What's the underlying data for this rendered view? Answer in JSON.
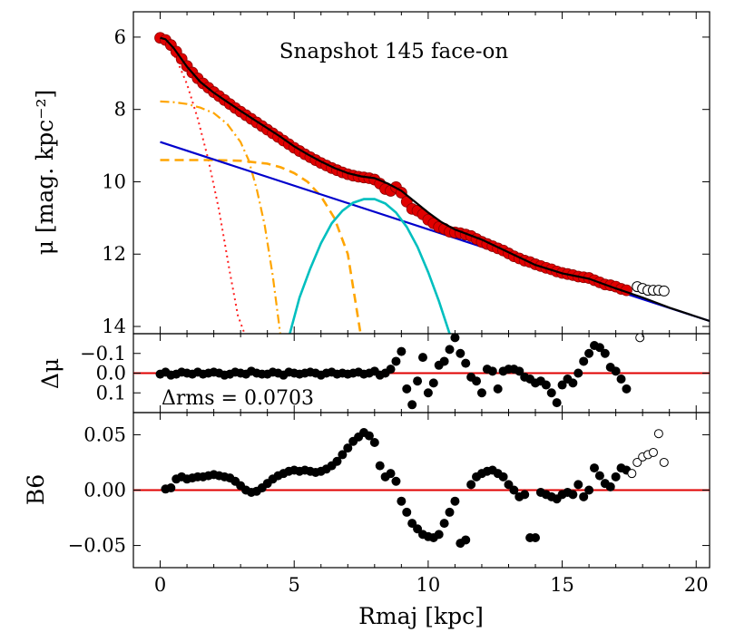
{
  "chart_data": [
    {
      "type": "scatter",
      "title": "Snapshot 145 face-on",
      "ylabel": "μ [mag. kpc⁻²]",
      "y_inverted": true,
      "xlim": [
        -1.0,
        20.5
      ],
      "ylim": [
        5.3,
        14.2
      ],
      "yticks": [
        6,
        8,
        10,
        12,
        14
      ],
      "colors": {
        "data": "#e00000",
        "total": "#000000",
        "bulge": "#ff2020",
        "bar": "#ffa500",
        "disk": "#0000cc",
        "ring": "#00bfbf"
      },
      "series": [
        {
          "name": "data points",
          "x": [
            0.0,
            0.2,
            0.4,
            0.6,
            0.8,
            1.0,
            1.2,
            1.4,
            1.6,
            1.8,
            2.0,
            2.2,
            2.4,
            2.6,
            2.8,
            3.0,
            3.2,
            3.4,
            3.6,
            3.8,
            4.0,
            4.2,
            4.4,
            4.6,
            4.8,
            5.0,
            5.2,
            5.4,
            5.6,
            5.8,
            6.0,
            6.2,
            6.4,
            6.6,
            6.8,
            7.0,
            7.2,
            7.4,
            7.6,
            7.8,
            8.0,
            8.2,
            8.4,
            8.6,
            8.8,
            9.0,
            9.2,
            9.4,
            9.6,
            9.8,
            10.0,
            10.2,
            10.4,
            10.6,
            10.8,
            11.0,
            11.2,
            11.4,
            11.6,
            11.8,
            12.0,
            12.2,
            12.4,
            12.6,
            12.8,
            13.0,
            13.2,
            13.4,
            13.6,
            13.8,
            14.0,
            14.2,
            14.4,
            14.6,
            14.8,
            15.0,
            15.2,
            15.4,
            15.6,
            15.8,
            16.0,
            16.2,
            16.4,
            16.6,
            16.8,
            17.0,
            17.2,
            17.4
          ],
          "y": [
            6.02,
            6.08,
            6.22,
            6.4,
            6.6,
            6.8,
            6.98,
            7.14,
            7.28,
            7.4,
            7.52,
            7.63,
            7.74,
            7.85,
            7.96,
            8.06,
            8.16,
            8.26,
            8.36,
            8.46,
            8.56,
            8.66,
            8.76,
            8.86,
            8.96,
            9.06,
            9.15,
            9.24,
            9.32,
            9.4,
            9.48,
            9.55,
            9.62,
            9.68,
            9.74,
            9.79,
            9.83,
            9.86,
            9.88,
            9.9,
            9.94,
            10.05,
            10.2,
            10.25,
            10.15,
            10.3,
            10.55,
            10.75,
            10.8,
            10.9,
            11.05,
            11.15,
            11.25,
            11.3,
            11.38,
            11.4,
            11.42,
            11.46,
            11.5,
            11.58,
            11.66,
            11.72,
            11.78,
            11.84,
            11.9,
            11.98,
            12.06,
            12.12,
            12.18,
            12.22,
            12.28,
            12.33,
            12.38,
            12.42,
            12.48,
            12.52,
            12.55,
            12.58,
            12.62,
            12.64,
            12.66,
            12.72,
            12.78,
            12.84,
            12.86,
            12.9,
            12.96,
            13.0
          ]
        },
        {
          "name": "excluded points",
          "x": [
            17.8,
            18.0,
            18.2,
            18.4,
            18.6,
            18.8
          ],
          "y": [
            12.9,
            12.95,
            13.0,
            13.0,
            13.0,
            13.02
          ]
        },
        {
          "name": "total model",
          "style": "solid",
          "x": [
            0,
            0.2,
            0.5,
            1,
            1.5,
            2,
            2.5,
            3,
            3.5,
            4,
            4.5,
            5,
            5.5,
            6,
            6.5,
            7,
            7.5,
            8,
            8.5,
            9,
            9.5,
            10,
            10.5,
            11,
            11.5,
            12,
            13,
            14,
            15,
            16,
            17,
            18,
            19,
            20.5
          ],
          "y": [
            6.02,
            6.06,
            6.3,
            6.82,
            7.24,
            7.54,
            7.79,
            8.04,
            8.28,
            8.52,
            8.76,
            9.02,
            9.24,
            9.44,
            9.62,
            9.76,
            9.85,
            9.9,
            10.05,
            10.25,
            10.55,
            10.85,
            11.12,
            11.32,
            11.46,
            11.6,
            11.95,
            12.3,
            12.53,
            12.68,
            12.95,
            13.2,
            13.48,
            13.85
          ]
        },
        {
          "name": "bulge",
          "style": "dotted",
          "x": [
            0,
            0.3,
            0.6,
            1.0,
            1.4,
            1.8,
            2.2,
            2.6,
            2.9,
            3.2
          ],
          "y": [
            6.1,
            6.25,
            6.6,
            7.3,
            8.25,
            9.4,
            10.8,
            12.5,
            13.7,
            14.3
          ]
        },
        {
          "name": "bar (inner)",
          "style": "dashdot",
          "x": [
            0,
            0.5,
            1.0,
            1.5,
            2.0,
            2.5,
            3.0,
            3.3,
            3.6,
            3.9,
            4.2,
            4.5
          ],
          "y": [
            7.78,
            7.8,
            7.85,
            7.95,
            8.1,
            8.4,
            8.9,
            9.4,
            10.2,
            11.2,
            12.6,
            14.3
          ]
        },
        {
          "name": "bar (outer)",
          "style": "dashed",
          "x": [
            0,
            1,
            2,
            3,
            4,
            4.5,
            5,
            5.5,
            6,
            6.5,
            7,
            7.5
          ],
          "y": [
            9.4,
            9.4,
            9.4,
            9.42,
            9.5,
            9.6,
            9.76,
            10.0,
            10.4,
            11.0,
            12.0,
            14.3
          ]
        },
        {
          "name": "disk",
          "style": "solid",
          "x": [
            0,
            20.5
          ],
          "y": [
            8.9,
            13.85
          ]
        },
        {
          "name": "ring",
          "style": "solid",
          "x": [
            4.8,
            5.2,
            5.6,
            6.0,
            6.4,
            6.8,
            7.2,
            7.6,
            8.0,
            8.4,
            8.8,
            9.2,
            9.6,
            10.0,
            10.4,
            10.8,
            11.1
          ],
          "y": [
            14.3,
            13.2,
            12.4,
            11.7,
            11.15,
            10.8,
            10.58,
            10.48,
            10.48,
            10.6,
            10.85,
            11.25,
            11.8,
            12.5,
            13.3,
            14.2,
            14.3
          ]
        }
      ]
    },
    {
      "type": "scatter",
      "ylabel": "Δμ",
      "annotation": "Δrms = 0.0703",
      "y_inverted": true,
      "xlim": [
        -1.0,
        20.5
      ],
      "ylim": [
        -0.2,
        0.2
      ],
      "yticks": [
        -0.1,
        0.0,
        0.1
      ],
      "ytick_labels": [
        "−0.1",
        "0.0",
        "0.1"
      ],
      "reference_line": 0.0,
      "series": [
        {
          "name": "residuals",
          "x": [
            0.0,
            0.2,
            0.4,
            0.6,
            0.8,
            1.0,
            1.2,
            1.4,
            1.6,
            1.8,
            2.0,
            2.2,
            2.4,
            2.6,
            2.8,
            3.0,
            3.2,
            3.4,
            3.6,
            3.8,
            4.0,
            4.2,
            4.4,
            4.6,
            4.8,
            5.0,
            5.2,
            5.4,
            5.6,
            5.8,
            6.0,
            6.2,
            6.4,
            6.6,
            6.8,
            7.0,
            7.2,
            7.4,
            7.6,
            7.8,
            8.0,
            8.2,
            8.4,
            8.6,
            8.8,
            9.0,
            9.2,
            9.4,
            9.6,
            9.8,
            10.0,
            10.2,
            10.4,
            10.6,
            10.8,
            11.0,
            11.2,
            11.4,
            11.6,
            11.8,
            12.0,
            12.2,
            12.4,
            12.6,
            12.8,
            13.0,
            13.2,
            13.4,
            13.6,
            13.8,
            14.0,
            14.2,
            14.4,
            14.6,
            14.8,
            15.0,
            15.2,
            15.4,
            15.6,
            15.8,
            16.0,
            16.2,
            16.4,
            16.6,
            16.8,
            17.0,
            17.2,
            17.4
          ],
          "y": [
            0.005,
            -0.005,
            0.01,
            0.005,
            -0.005,
            0.0,
            0.005,
            -0.005,
            0.005,
            0.0,
            -0.005,
            0.0,
            0.01,
            0.005,
            -0.005,
            0.0,
            0.005,
            -0.01,
            0.0,
            0.005,
            0.005,
            -0.005,
            0.0,
            0.01,
            -0.005,
            0.0,
            0.005,
            0.0,
            -0.005,
            0.0,
            0.01,
            0.0,
            -0.005,
            0.005,
            0.0,
            0.005,
            0.0,
            -0.005,
            0.005,
            0.0,
            -0.01,
            0.01,
            0.0,
            -0.02,
            -0.06,
            -0.11,
            0.08,
            0.16,
            0.04,
            -0.08,
            0.1,
            0.05,
            -0.04,
            -0.06,
            -0.12,
            -0.18,
            -0.1,
            -0.05,
            0.02,
            0.04,
            0.1,
            -0.02,
            -0.01,
            0.08,
            -0.01,
            -0.02,
            -0.02,
            -0.01,
            0.02,
            0.03,
            0.05,
            0.04,
            0.06,
            0.1,
            0.15,
            0.06,
            0.03,
            0.05,
            0.0,
            -0.06,
            -0.1,
            -0.14,
            -0.13,
            -0.1,
            -0.03,
            -0.01,
            0.03,
            0.08
          ]
        },
        {
          "name": "excluded residuals",
          "x": [
            17.9
          ],
          "y": [
            -0.18
          ]
        }
      ]
    },
    {
      "type": "scatter",
      "ylabel": "B6",
      "xlabel": "Rmaj [kpc]",
      "xlim": [
        -1.0,
        20.5
      ],
      "ylim": [
        -0.07,
        0.07
      ],
      "yticks": [
        -0.05,
        0.0,
        0.05
      ],
      "ytick_labels": [
        "−0.05",
        "0.00",
        "0.05"
      ],
      "xticks": [
        0,
        5,
        10,
        15,
        20
      ],
      "reference_line": 0.0,
      "series": [
        {
          "name": "B6 measured",
          "x": [
            0.2,
            0.4,
            0.6,
            0.8,
            1.0,
            1.2,
            1.4,
            1.6,
            1.8,
            2.0,
            2.2,
            2.4,
            2.6,
            2.8,
            3.0,
            3.2,
            3.4,
            3.6,
            3.8,
            4.0,
            4.2,
            4.4,
            4.6,
            4.8,
            5.0,
            5.2,
            5.4,
            5.6,
            5.8,
            6.0,
            6.2,
            6.4,
            6.6,
            6.8,
            7.0,
            7.2,
            7.4,
            7.6,
            7.8,
            8.0,
            8.2,
            8.4,
            8.6,
            8.8,
            9.0,
            9.2,
            9.4,
            9.6,
            9.8,
            10.0,
            10.2,
            10.4,
            10.6,
            10.8,
            11.0,
            11.2,
            11.4,
            11.6,
            11.8,
            12.0,
            12.2,
            12.4,
            12.6,
            12.8,
            13.0,
            13.2,
            13.4,
            13.6,
            13.8,
            14.0,
            14.2,
            14.4,
            14.6,
            14.8,
            15.0,
            15.2,
            15.4,
            15.6,
            15.8,
            16.0,
            16.2,
            16.4,
            16.6,
            16.8,
            17.0,
            17.2,
            17.4
          ],
          "y": [
            0.001,
            0.002,
            0.01,
            0.012,
            0.01,
            0.011,
            0.012,
            0.012,
            0.013,
            0.014,
            0.013,
            0.012,
            0.011,
            0.008,
            0.004,
            0.0,
            -0.002,
            -0.001,
            0.002,
            0.006,
            0.01,
            0.013,
            0.015,
            0.017,
            0.018,
            0.017,
            0.018,
            0.017,
            0.016,
            0.017,
            0.019,
            0.022,
            0.026,
            0.032,
            0.038,
            0.044,
            0.048,
            0.052,
            0.049,
            0.043,
            0.022,
            0.012,
            0.015,
            0.008,
            -0.01,
            -0.02,
            -0.03,
            -0.035,
            -0.04,
            -0.042,
            -0.043,
            -0.04,
            -0.03,
            -0.02,
            -0.01,
            -0.048,
            -0.045,
            0.005,
            0.012,
            0.015,
            0.017,
            0.018,
            0.015,
            0.012,
            0.005,
            0.0,
            -0.006,
            -0.004,
            -0.043,
            -0.043,
            -0.002,
            -0.004,
            -0.006,
            -0.008,
            -0.004,
            -0.002,
            -0.004,
            0.005,
            -0.006,
            0.0,
            0.02,
            0.013,
            0.006,
            0.003,
            0.012,
            0.02,
            0.018
          ]
        },
        {
          "name": "B6 excluded",
          "x": [
            17.6,
            17.8,
            18.0,
            18.2,
            18.4,
            18.6,
            18.8
          ],
          "y": [
            0.015,
            0.025,
            0.03,
            0.032,
            0.034,
            0.051,
            0.025
          ]
        }
      ]
    }
  ]
}
